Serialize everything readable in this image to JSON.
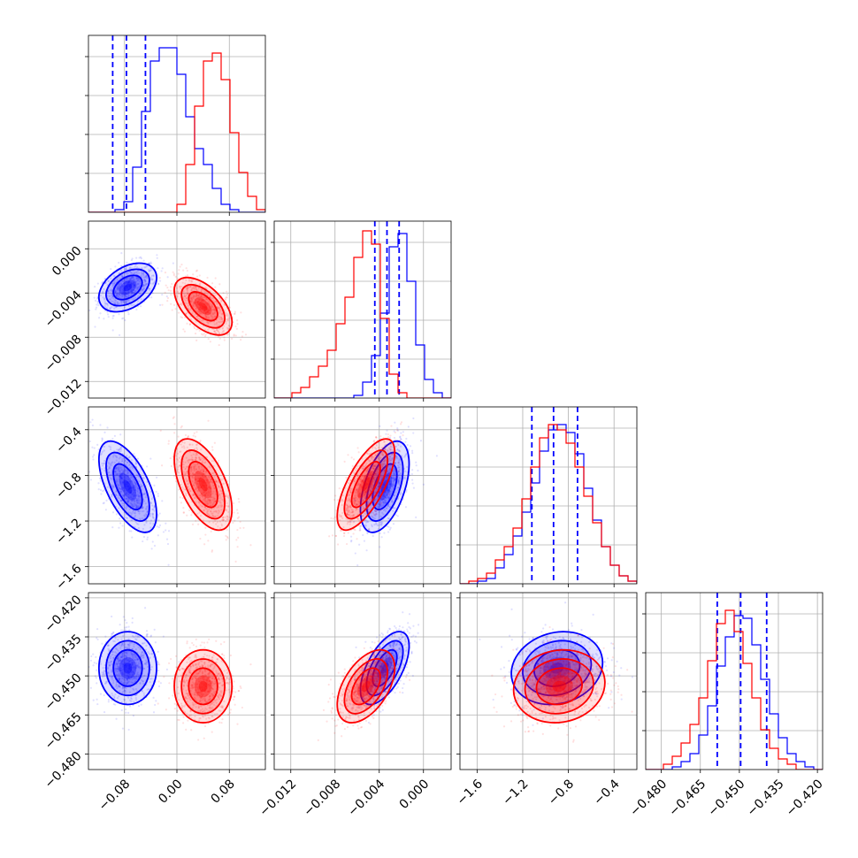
{
  "chart_data": {
    "type": "corner",
    "grid": true,
    "quantile_line_style": "dashed",
    "colors": {
      "blue": "#0000ff",
      "red": "#ff0000"
    },
    "parameters": [
      {
        "index": 0,
        "range": [
          -0.135,
          0.135
        ],
        "ticks": [
          -0.08,
          0.0,
          0.08
        ],
        "tick_labels": [
          "−0.08",
          "0.00",
          "0.08"
        ]
      },
      {
        "index": 1,
        "range": [
          -0.0135,
          0.0025
        ],
        "ticks": [
          -0.012,
          -0.008,
          -0.004,
          0.0
        ],
        "tick_labels": [
          "−0.012",
          "−0.008",
          "−0.004",
          "0.000"
        ]
      },
      {
        "index": 2,
        "range": [
          -1.75,
          -0.2
        ],
        "ticks": [
          -1.6,
          -1.2,
          -0.8,
          -0.4
        ],
        "tick_labels": [
          "−1.6",
          "−1.2",
          "−0.8",
          "−0.4"
        ]
      },
      {
        "index": 3,
        "range": [
          -0.486,
          -0.418
        ],
        "ticks": [
          -0.48,
          -0.465,
          -0.45,
          -0.435,
          -0.42
        ],
        "tick_labels": [
          "−0.480",
          "−0.465",
          "−0.450",
          "−0.435",
          "−0.420"
        ]
      }
    ],
    "series": [
      {
        "color": "#0000ff",
        "mean": [
          -0.075,
          -0.0035,
          -0.9,
          -0.447
        ],
        "std": [
          0.022,
          0.0011,
          0.2,
          0.007
        ],
        "correlation": [
          [
            1,
            0.4,
            -0.6,
            0.0
          ],
          [
            0.4,
            1,
            0.5,
            0.6
          ],
          [
            -0.6,
            0.5,
            1,
            0.15
          ],
          [
            0.0,
            0.6,
            0.15,
            1
          ]
        ],
        "quantiles": [
          [
            -0.098,
            -0.077,
            -0.048
          ],
          [
            -0.0044,
            -0.0033,
            -0.0022
          ],
          [
            -1.12,
            -0.93,
            -0.72
          ],
          [
            -0.4585,
            -0.4495,
            -0.4395
          ]
        ],
        "histograms": [
          [
            0,
            0,
            0,
            1,
            4,
            17,
            38,
            57,
            62,
            62,
            52,
            36,
            24,
            18,
            9,
            3,
            1,
            0,
            0,
            0
          ],
          [
            0,
            0,
            0,
            0,
            0,
            0,
            0,
            0,
            0,
            1,
            6,
            16,
            32,
            57,
            62,
            44,
            20,
            7,
            2,
            0
          ],
          [
            0,
            0,
            1,
            2,
            6,
            11,
            18,
            27,
            38,
            50,
            58,
            60,
            57,
            49,
            36,
            24,
            14,
            7,
            3,
            1
          ],
          [
            0,
            0,
            0,
            1,
            3,
            6,
            13,
            24,
            39,
            50,
            58,
            57,
            47,
            34,
            21,
            12,
            6,
            3,
            1,
            0
          ]
        ]
      },
      {
        "color": "#ff0000",
        "mean": [
          0.04,
          -0.0052,
          -0.88,
          -0.454
        ],
        "std": [
          0.022,
          0.0013,
          0.2,
          0.007
        ],
        "correlation": [
          [
            1,
            -0.55,
            -0.55,
            0.0
          ],
          [
            -0.55,
            1,
            0.7,
            0.5
          ],
          [
            -0.55,
            0.7,
            1,
            0.1
          ],
          [
            0.0,
            0.5,
            0.1,
            1
          ]
        ],
        "quantiles": [],
        "histograms": [
          [
            0,
            0,
            0,
            0,
            0,
            0,
            0,
            0,
            0,
            0,
            3,
            18,
            40,
            57,
            60,
            50,
            30,
            15,
            6,
            1
          ],
          [
            0,
            0,
            2,
            4,
            8,
            12,
            18,
            28,
            38,
            53,
            63,
            58,
            30,
            9,
            2,
            0,
            0,
            0,
            0,
            0
          ],
          [
            0,
            1,
            2,
            4,
            9,
            14,
            21,
            32,
            44,
            55,
            60,
            58,
            53,
            44,
            33,
            23,
            14,
            7,
            3,
            1
          ],
          [
            0,
            0,
            2,
            5,
            10,
            17,
            27,
            41,
            55,
            60,
            52,
            40,
            27,
            15,
            8,
            4,
            2,
            0,
            0,
            0
          ]
        ]
      }
    ]
  }
}
